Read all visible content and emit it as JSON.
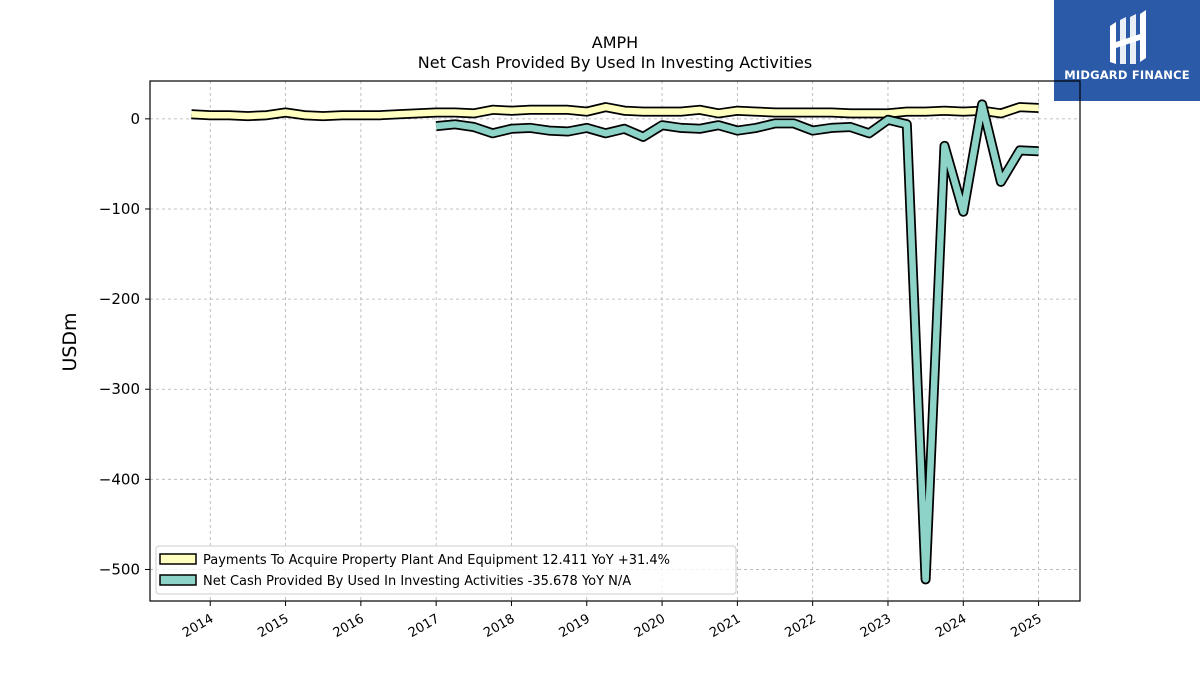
{
  "brand": {
    "name": "MIDGARD FINANCE",
    "bg_color": "#2a5aa8"
  },
  "chart_data": {
    "type": "line",
    "title": "AMPH",
    "subtitle": "Net Cash Provided By Used In Investing Activities",
    "ylabel": "USDm",
    "xlabel": "",
    "ylim": [
      -535,
      42
    ],
    "xlim": [
      2013.2,
      2025.55
    ],
    "yticks": [
      0,
      -100,
      -200,
      -300,
      -400,
      -500
    ],
    "ytick_labels": [
      "0",
      "−100",
      "−200",
      "−300",
      "−400",
      "−500"
    ],
    "xticks": [
      2014,
      2015,
      2016,
      2017,
      2018,
      2019,
      2020,
      2021,
      2022,
      2023,
      2024,
      2025
    ],
    "xtick_labels": [
      "2014",
      "2015",
      "2016",
      "2017",
      "2018",
      "2019",
      "2020",
      "2021",
      "2022",
      "2023",
      "2024",
      "2025"
    ],
    "grid": true,
    "legend_position": "lower-left",
    "series": [
      {
        "name": "Payments To Acquire Property Plant And Equipment  12.411 YoY +31.4%",
        "color": "#ffffbf",
        "x": [
          2013.75,
          2014.0,
          2014.25,
          2014.5,
          2014.75,
          2015.0,
          2015.25,
          2015.5,
          2015.75,
          2016.0,
          2016.25,
          2016.5,
          2016.75,
          2017.0,
          2017.25,
          2017.5,
          2017.75,
          2018.0,
          2018.25,
          2018.5,
          2018.75,
          2019.0,
          2019.25,
          2019.5,
          2019.75,
          2020.0,
          2020.25,
          2020.5,
          2020.75,
          2021.0,
          2021.25,
          2021.5,
          2021.75,
          2022.0,
          2022.25,
          2022.5,
          2022.75,
          2023.0,
          2023.25,
          2023.5,
          2023.75,
          2024.0,
          2024.25,
          2024.5,
          2024.75,
          2025.0
        ],
        "y": [
          5,
          4,
          4,
          3,
          4,
          7,
          4,
          3,
          4,
          4,
          4,
          5,
          6,
          7,
          7,
          6,
          10,
          9,
          10,
          10,
          10,
          8,
          13,
          9,
          8,
          8,
          8,
          10,
          6,
          9,
          8,
          7,
          7,
          7,
          7,
          6,
          6,
          6,
          8,
          8,
          9,
          8,
          9,
          6,
          13,
          12
        ]
      },
      {
        "name": "Net Cash Provided By Used In Investing Activities  -35.678 YoY N/A",
        "color": "#8dd3c7",
        "x": [
          2017.0,
          2017.25,
          2017.5,
          2017.75,
          2018.0,
          2018.25,
          2018.5,
          2018.75,
          2019.0,
          2019.25,
          2019.5,
          2019.75,
          2020.0,
          2020.25,
          2020.5,
          2020.75,
          2021.0,
          2021.25,
          2021.5,
          2021.75,
          2022.0,
          2022.25,
          2022.5,
          2022.75,
          2023.0,
          2023.25,
          2023.5,
          2023.75,
          2024.0,
          2024.25,
          2024.5,
          2024.75,
          2025.0
        ],
        "y": [
          -8,
          -6,
          -9,
          -16,
          -11,
          -10,
          -13,
          -14,
          -10,
          -16,
          -11,
          -20,
          -7,
          -10,
          -11,
          -7,
          -13,
          -10,
          -5,
          -5,
          -13,
          -10,
          -9,
          -16,
          -1,
          -6,
          -511,
          -30,
          -103,
          16,
          -70,
          -35,
          -36
        ]
      }
    ]
  }
}
